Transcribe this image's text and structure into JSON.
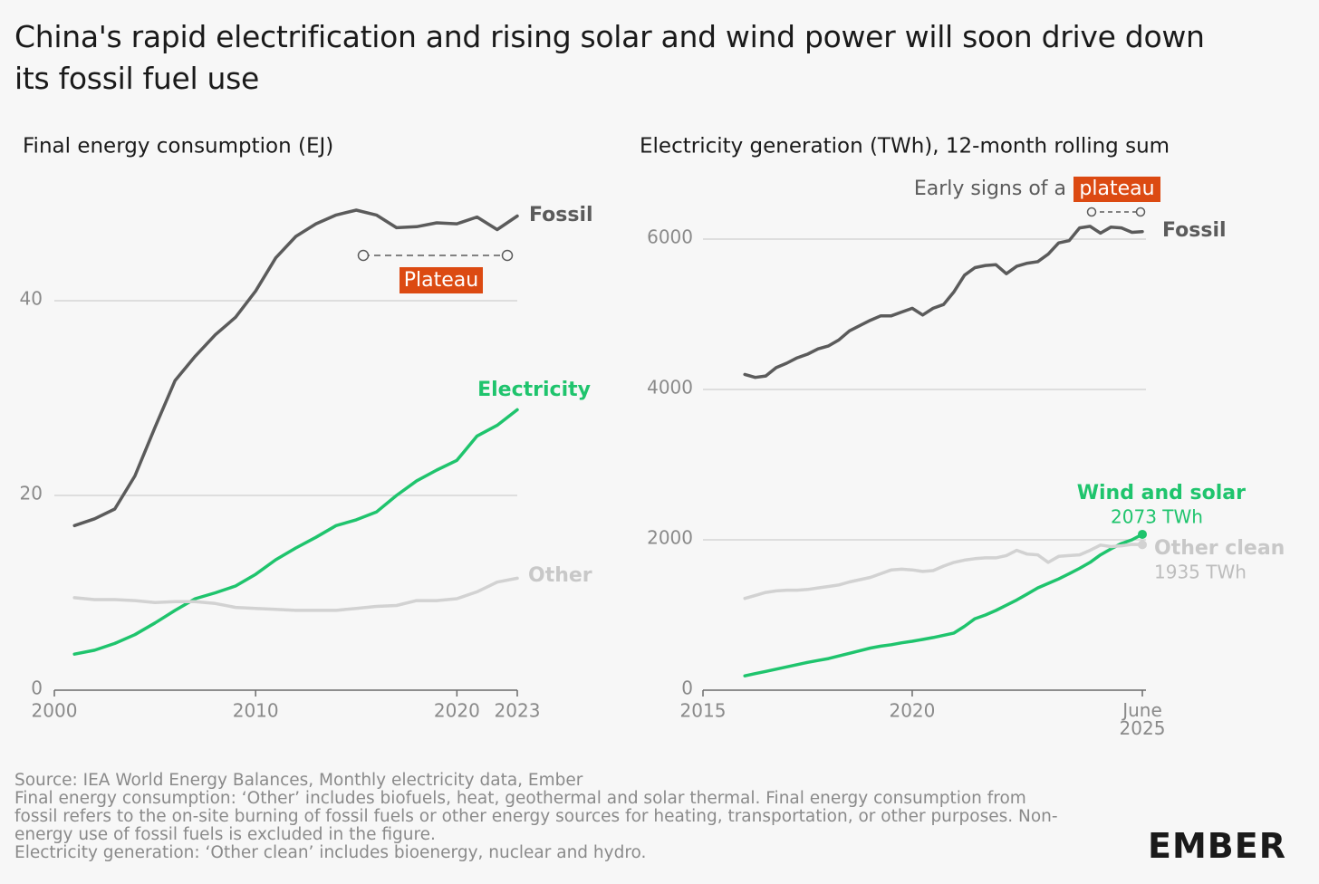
{
  "header": {
    "title": "China's rapid electrification and rising solar and wind power will soon drive down its fossil fuel use"
  },
  "notes": [
    "Source: IEA World Energy Balances, Monthly electricity data, Ember",
    "Final energy consumption: ‘Other’ includes biofuels, heat, geothermal and solar thermal. Final energy consumption from fossil refers to the on-site burning of fossil fuels or other energy sources for heating, transportation, or other purposes. Non-energy use of fossil fuels is excluded in the figure.",
    "Electricity generation: ‘Other clean’ includes bioenergy, nuclear and hydro."
  ],
  "logo": "EMBER",
  "chart_data": [
    {
      "type": "line",
      "subtitle": "Final energy consumption (EJ)",
      "x": [
        2001,
        2002,
        2003,
        2004,
        2005,
        2006,
        2007,
        2008,
        2009,
        2010,
        2011,
        2012,
        2013,
        2014,
        2015,
        2016,
        2017,
        2018,
        2019,
        2020,
        2021,
        2022,
        2023
      ],
      "xlim": [
        2000,
        2023
      ],
      "xticks": [
        2000,
        2010,
        2020,
        2023
      ],
      "ylim": [
        0,
        50
      ],
      "yticks": [
        0,
        20,
        40
      ],
      "grid": true,
      "series": [
        {
          "name": "Fossil",
          "color": "#5b5b5b",
          "values": [
            16.9,
            17.6,
            18.6,
            22.0,
            27.0,
            31.8,
            34.3,
            36.5,
            38.3,
            41.0,
            44.4,
            46.6,
            47.9,
            48.8,
            49.3,
            48.8,
            47.5,
            47.6,
            48.0,
            47.9,
            48.6,
            47.3,
            48.7
          ]
        },
        {
          "name": "Electricity",
          "color": "#1fc46d",
          "values": [
            3.7,
            4.1,
            4.8,
            5.7,
            6.9,
            8.2,
            9.4,
            10.0,
            10.7,
            11.9,
            13.4,
            14.6,
            15.7,
            16.9,
            17.5,
            18.3,
            20.0,
            21.5,
            22.6,
            23.6,
            26.1,
            27.2,
            28.8
          ]
        },
        {
          "name": "Other",
          "color": "#d2d2d2",
          "values": [
            9.5,
            9.3,
            9.3,
            9.2,
            9.0,
            9.1,
            9.1,
            8.9,
            8.5,
            8.4,
            8.3,
            8.2,
            8.2,
            8.2,
            8.4,
            8.6,
            8.7,
            9.2,
            9.2,
            9.4,
            10.1,
            11.1,
            11.5
          ]
        }
      ],
      "annotations": [
        "Plateau"
      ]
    },
    {
      "type": "line",
      "subtitle": "Electricity generation (TWh), 12-month rolling sum",
      "x": [
        2016,
        2016.25,
        2016.5,
        2016.75,
        2017,
        2017.25,
        2017.5,
        2017.75,
        2018,
        2018.25,
        2018.5,
        2018.75,
        2019,
        2019.25,
        2019.5,
        2019.75,
        2020,
        2020.25,
        2020.5,
        2020.75,
        2021,
        2021.25,
        2021.5,
        2021.75,
        2022,
        2022.25,
        2022.5,
        2022.75,
        2023,
        2023.25,
        2023.5,
        2023.75,
        2024,
        2024.25,
        2024.5,
        2024.75,
        2025,
        2025.25,
        2025.5
      ],
      "xlim": [
        2015,
        2025.5
      ],
      "xticks": [
        2015,
        2020,
        {
          "value": 2025.5,
          "label": "June 2025"
        }
      ],
      "ylim": [
        0,
        6500
      ],
      "yticks": [
        0,
        2000,
        4000,
        6000
      ],
      "grid": true,
      "series": [
        {
          "name": "Fossil",
          "color": "#5b5b5b",
          "values": [
            4200,
            4160,
            4180,
            4290,
            4350,
            4420,
            4470,
            4540,
            4580,
            4660,
            4780,
            4850,
            4920,
            4980,
            4980,
            5030,
            5080,
            4990,
            5080,
            5130,
            5300,
            5520,
            5620,
            5650,
            5660,
            5540,
            5640,
            5680,
            5700,
            5800,
            5950,
            5980,
            6150,
            6170,
            6080,
            6160,
            6150,
            6090,
            6100
          ]
        },
        {
          "name": "Wind and solar",
          "color": "#1fc46d",
          "values": [
            190,
            220,
            250,
            280,
            310,
            340,
            370,
            395,
            420,
            455,
            490,
            525,
            560,
            585,
            605,
            630,
            650,
            675,
            700,
            730,
            760,
            850,
            950,
            1000,
            1060,
            1130,
            1200,
            1280,
            1360,
            1420,
            1480,
            1550,
            1620,
            1700,
            1800,
            1880,
            1950,
            2000,
            2073
          ],
          "value_labels": [
            null,
            null,
            null,
            null,
            null,
            null,
            null,
            null,
            null,
            null,
            null,
            null,
            null,
            null,
            null,
            null,
            null,
            null,
            null,
            null,
            null,
            null,
            null,
            null,
            null,
            null,
            null,
            null,
            null,
            null,
            null,
            null,
            null,
            null,
            null,
            null,
            null,
            null,
            "2073 TWh"
          ]
        },
        {
          "name": "Other clean",
          "color": "#d2d2d2",
          "values": [
            1220,
            1260,
            1300,
            1320,
            1330,
            1330,
            1340,
            1360,
            1380,
            1400,
            1440,
            1470,
            1500,
            1550,
            1600,
            1610,
            1600,
            1580,
            1590,
            1650,
            1700,
            1730,
            1750,
            1760,
            1760,
            1790,
            1860,
            1810,
            1800,
            1700,
            1780,
            1790,
            1800,
            1860,
            1930,
            1910,
            1920,
            1940,
            1935
          ],
          "value_labels": [
            null,
            null,
            null,
            null,
            null,
            null,
            null,
            null,
            null,
            null,
            null,
            null,
            null,
            null,
            null,
            null,
            null,
            null,
            null,
            null,
            null,
            null,
            null,
            null,
            null,
            null,
            null,
            null,
            null,
            null,
            null,
            null,
            null,
            null,
            null,
            null,
            null,
            null,
            "1935 TWh"
          ]
        }
      ],
      "annotations": [
        "Early signs of a",
        "plateau"
      ]
    }
  ]
}
